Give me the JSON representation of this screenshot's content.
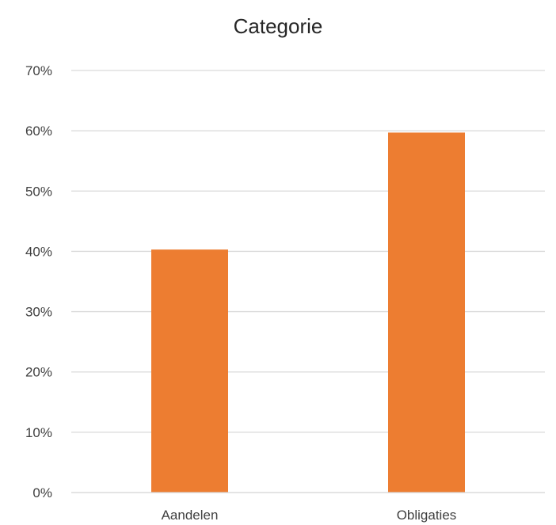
{
  "chart_data": {
    "type": "bar",
    "title": "Categorie",
    "categories": [
      "Aandelen",
      "Obligaties"
    ],
    "values": [
      0.403,
      0.597
    ],
    "ylim": [
      0,
      0.7
    ],
    "yticks": [
      0,
      0.1,
      0.2,
      0.3,
      0.4,
      0.5,
      0.6,
      0.7
    ],
    "ytick_labels": [
      "0%",
      "10%",
      "20%",
      "30%",
      "40%",
      "50%",
      "60%",
      "70%"
    ],
    "xlabel": "",
    "ylabel": "",
    "grid": true,
    "legend": "none",
    "colors": {
      "bar": "#ED7D31",
      "grid": "#D9D9D9",
      "text": "#404040",
      "title": "#262626"
    }
  }
}
